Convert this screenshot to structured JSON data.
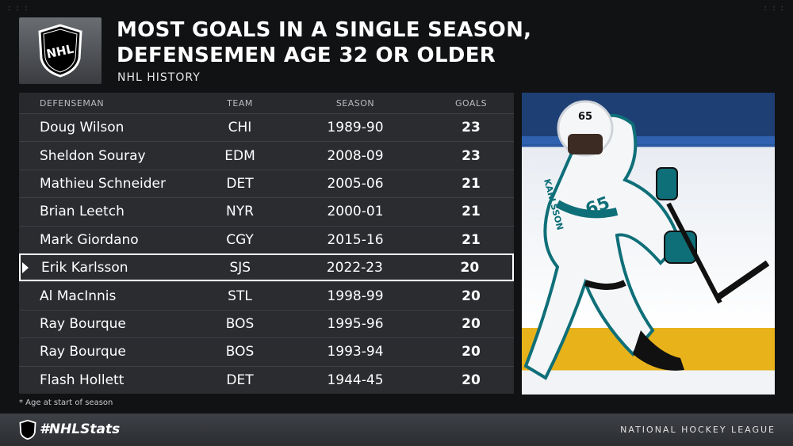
{
  "title": "MOST GOALS IN A SINGLE SEASON, DEFENSEMEN AGE 32 OR OLDER",
  "subtitle": "NHL HISTORY",
  "logo_text": "NHL",
  "table": {
    "headers": {
      "name": "DEFENSEMAN",
      "team": "TEAM",
      "season": "SEASON",
      "goals": "GOALS"
    },
    "rows": [
      {
        "name": "Doug Wilson",
        "team": "CHI",
        "season": "1989-90",
        "goals": "23"
      },
      {
        "name": "Sheldon Souray",
        "team": "EDM",
        "season": "2008-09",
        "goals": "23"
      },
      {
        "name": "Mathieu Schneider",
        "team": "DET",
        "season": "2005-06",
        "goals": "21"
      },
      {
        "name": "Brian Leetch",
        "team": "NYR",
        "season": "2000-01",
        "goals": "21"
      },
      {
        "name": "Mark Giordano",
        "team": "CGY",
        "season": "2015-16",
        "goals": "21"
      },
      {
        "name": "Erik Karlsson",
        "team": "SJS",
        "season": "2022-23",
        "goals": "20"
      },
      {
        "name": "Al MacInnis",
        "team": "STL",
        "season": "1998-99",
        "goals": "20"
      },
      {
        "name": "Ray Bourque",
        "team": "BOS",
        "season": "1995-96",
        "goals": "20"
      },
      {
        "name": "Ray Bourque",
        "team": "BOS",
        "season": "1993-94",
        "goals": "20"
      },
      {
        "name": "Flash Hollett",
        "team": "DET",
        "season": "1944-45",
        "goals": "20"
      }
    ],
    "highlight_index": 5
  },
  "photo": {
    "jersey_number": "65",
    "jersey_text": "KARLSSON"
  },
  "footnote": "* Age at start of season",
  "footer": {
    "hashtag": "#NHLStats",
    "league": "NATIONAL HOCKEY LEAGUE"
  },
  "colors": {
    "background": "#111214",
    "table": "#2a2c30",
    "teal": "#0f6f78",
    "ice_yellow": "#e7b21a"
  }
}
